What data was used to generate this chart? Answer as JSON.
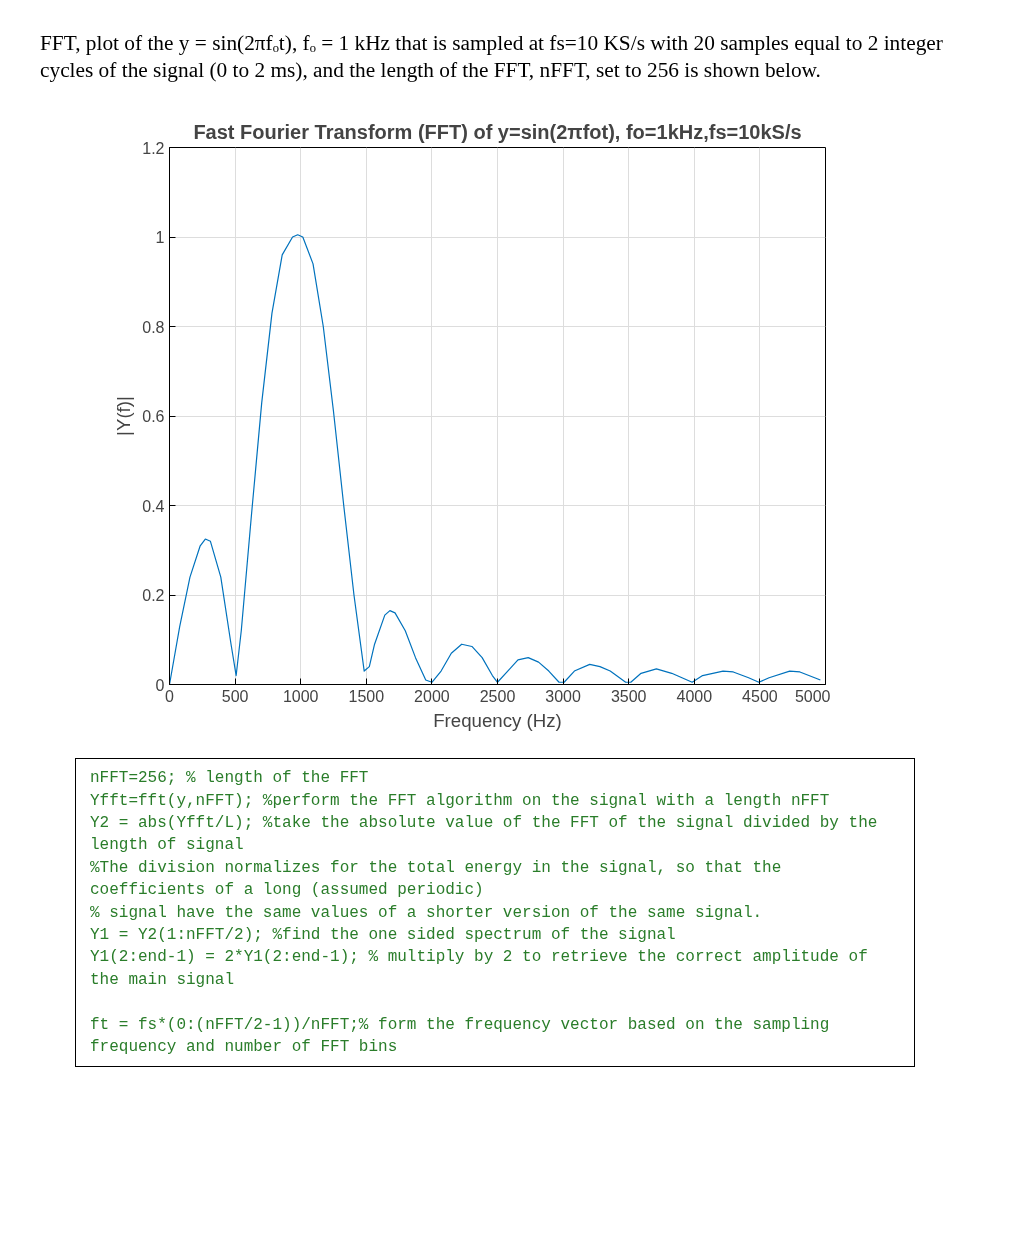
{
  "chart_data": {
    "type": "line",
    "title": "Fast Fourier Transform (FFT) of y=sin(2πfot), fo=1kHz,fs=10kS/s",
    "subtitle": "FFT, plot of the  y = sin(2πfₒt), fₒ = 1 kHz that is sampled at fs=10 KS/s with 20 samples equal to 2 integer cycles of the signal (0 to 2 ms), and the length of the FFT, nFFT, set to 256 is shown below.",
    "xlabel": "Frequency (Hz)",
    "ylabel": "|Y(f)|",
    "x": [
      0,
      78,
      156,
      234,
      273,
      312,
      391,
      469,
      508,
      547,
      625,
      703,
      781,
      859,
      938,
      977,
      1016,
      1094,
      1172,
      1250,
      1328,
      1406,
      1484,
      1523,
      1563,
      1641,
      1680,
      1719,
      1797,
      1875,
      1953,
      2000,
      2070,
      2148,
      2227,
      2305,
      2383,
      2461,
      2500,
      2578,
      2656,
      2734,
      2813,
      2891,
      2969,
      3008,
      3086,
      3203,
      3281,
      3359,
      3477,
      3516,
      3594,
      3711,
      3828,
      3984,
      4063,
      4219,
      4297,
      4414,
      4492,
      4570,
      4727,
      4805,
      4961
    ],
    "series": [
      {
        "color": "#0072bd",
        "values": [
          0.0,
          0.13,
          0.24,
          0.31,
          0.325,
          0.32,
          0.24,
          0.09,
          0.02,
          0.12,
          0.38,
          0.63,
          0.83,
          0.96,
          1.0,
          1.005,
          1.0,
          0.94,
          0.8,
          0.61,
          0.4,
          0.2,
          0.03,
          0.04,
          0.09,
          0.155,
          0.165,
          0.16,
          0.12,
          0.06,
          0.01,
          0.005,
          0.03,
          0.07,
          0.09,
          0.085,
          0.06,
          0.02,
          0.005,
          0.03,
          0.055,
          0.06,
          0.05,
          0.03,
          0.005,
          0.005,
          0.03,
          0.045,
          0.04,
          0.03,
          0.005,
          0.005,
          0.025,
          0.035,
          0.025,
          0.005,
          0.02,
          0.03,
          0.028,
          0.015,
          0.005,
          0.015,
          0.03,
          0.028,
          0.01
        ]
      }
    ],
    "xlim": [
      0,
      5000
    ],
    "ylim": [
      0,
      1.2
    ],
    "xticks": [
      0,
      500,
      1000,
      1500,
      2000,
      2500,
      3000,
      3500,
      4000,
      4500,
      5000
    ],
    "yticks": [
      0,
      0.2,
      0.4,
      0.6,
      0.8,
      1,
      1.2
    ],
    "grid": true,
    "marker": "none",
    "line_style": "solid",
    "annotations": [
      "nFFT=256;   % length of the FFT",
      "Yfft=fft(y,nFFT); %perform the FFT algorithm on the signal with a length nFFT",
      "Y2 = abs(Yfft/L); %take the absolute value of the FFT of the signal divided by the length of signal",
      "%The division normalizes for the total energy in the signal, so that the coefficients of a long (assumed periodic)",
      "% signal have the same values of a shorter version of the same signal.",
      "Y1 = Y2(1:nFFT/2); %find the one sided spectrum of the signal",
      "Y1(2:end-1) = 2*Y1(2:end-1); % multiply by 2 to retrieve the correct amplitude of the main signal",
      "ft = fs*(0:(nFFT/2-1))/nFFT;% form the frequency vector based on the sampling frequency and number of FFT bins"
    ]
  }
}
